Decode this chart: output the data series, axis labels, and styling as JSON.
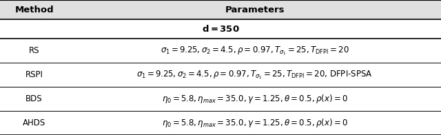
{
  "title_row": [
    "Method",
    "Parameters"
  ],
  "section_header": "$\\mathbf{d = 350}$",
  "methods": [
    "RS",
    "RSPI",
    "BDS",
    "AHDS"
  ],
  "params": [
    "$\\sigma_1 = 9.25, \\sigma_2 = 4.5, \\rho = 0.97, T_{\\sigma_1} = 25, T_{\\mathrm{DFPI}} = 20$",
    "$\\sigma_1 = 9.25, \\sigma_2 = 4.5, \\rho = 0.97, T_{\\sigma_1} = 25, T_{\\mathrm{DFPI}} = 20$, DFPI-SPSA",
    "$\\eta_0 = 5.8, \\eta_{max} = 35.0, \\gamma = 1.25, \\theta = 0.5, \\rho(x) = 0$",
    "$\\eta_0 = 5.8, \\eta_{max} = 35.0, \\gamma = 1.25, \\theta = 0.5, \\rho(x) = 0$"
  ],
  "header_bg": "#e0e0e0",
  "row_bg": "#ffffff",
  "col_split": 0.155,
  "fontsize": 8.5,
  "header_fontsize": 9.5,
  "section_fontsize": 9.5
}
